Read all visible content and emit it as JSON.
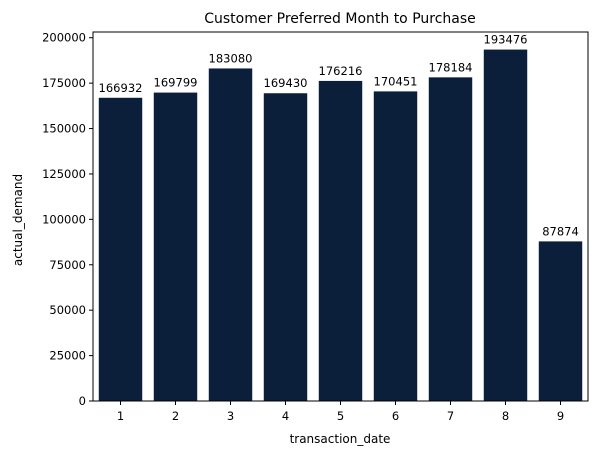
{
  "chart_data": {
    "type": "bar",
    "title": "Customer Preferred Month to Purchase",
    "xlabel": "transaction_date",
    "ylabel": "actual_demand",
    "categories": [
      "1",
      "2",
      "3",
      "4",
      "5",
      "6",
      "7",
      "8",
      "9"
    ],
    "values": [
      166932,
      169799,
      183080,
      169430,
      176216,
      170451,
      178184,
      193476,
      87874
    ],
    "data_labels": [
      "166932",
      "169799",
      "183080",
      "169430",
      "176216",
      "170451",
      "178184",
      "193476",
      "87874"
    ],
    "ylim": [
      0,
      203150
    ],
    "yticks": [
      0,
      25000,
      50000,
      75000,
      100000,
      125000,
      150000,
      175000,
      200000
    ],
    "ytick_labels": [
      "0",
      "25000",
      "50000",
      "75000",
      "100000",
      "125000",
      "150000",
      "175000",
      "200000"
    ],
    "grid": false,
    "bar_color": "#0b1f3a"
  }
}
